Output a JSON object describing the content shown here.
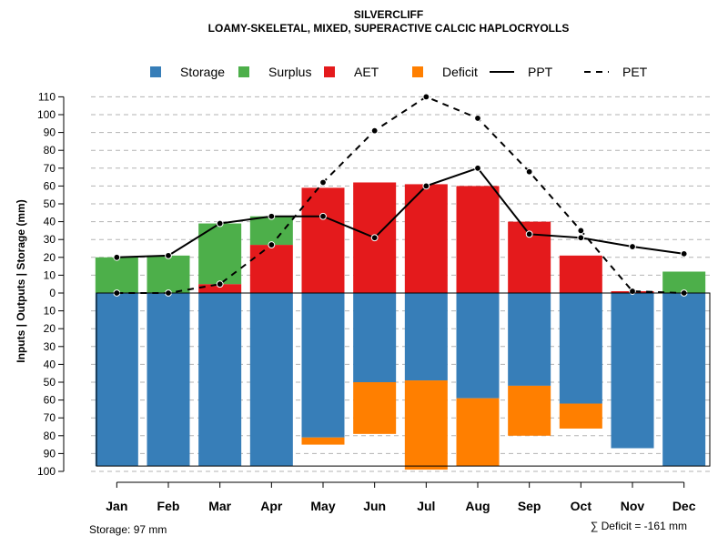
{
  "chart_data": {
    "type": "bar",
    "title": "SILVERCLIFF",
    "subtitle": "LOAMY-SKELETAL, MIXED, SUPERACTIVE CALCIC HAPLOCRYOLLS",
    "ylabel": "Inputs | Outputs | Storage    (mm)",
    "ylim": [
      -100,
      110
    ],
    "y_ticks": [
      110,
      100,
      90,
      80,
      70,
      60,
      50,
      40,
      30,
      20,
      10,
      0,
      -10,
      -20,
      -30,
      -40,
      -50,
      -60,
      -70,
      -80,
      -90,
      -100
    ],
    "y_tick_labels": [
      "110",
      "100",
      "90",
      "80",
      "70",
      "60",
      "50",
      "40",
      "30",
      "20",
      "10",
      "0",
      "10",
      "20",
      "30",
      "40",
      "50",
      "60",
      "70",
      "80",
      "90",
      "100"
    ],
    "categories": [
      "Jan",
      "Feb",
      "Mar",
      "Apr",
      "May",
      "Jun",
      "Jul",
      "Aug",
      "Sep",
      "Oct",
      "Nov",
      "Dec"
    ],
    "legend": [
      {
        "name": "Storage",
        "kind": "box",
        "color": "#377eb8"
      },
      {
        "name": "Surplus",
        "kind": "box",
        "color": "#4daf4a"
      },
      {
        "name": "AET",
        "kind": "box",
        "color": "#e41a1c"
      },
      {
        "name": "Deficit",
        "kind": "box",
        "color": "#ff7f00"
      },
      {
        "name": "PPT",
        "kind": "solid"
      },
      {
        "name": "PET",
        "kind": "dashed"
      }
    ],
    "series": [
      {
        "name": "Storage",
        "color": "#377eb8",
        "values": [
          97,
          97,
          97,
          97,
          81,
          50,
          49,
          59,
          52,
          62,
          87,
          97
        ]
      },
      {
        "name": "Deficit",
        "color": "#ff7f00",
        "values": [
          0,
          0,
          0,
          0,
          4,
          29,
          50,
          38,
          28,
          14,
          0,
          0
        ]
      },
      {
        "name": "AET",
        "color": "#e41a1c",
        "values": [
          0,
          0,
          5,
          27,
          59,
          62,
          61,
          60,
          40,
          21,
          1,
          0
        ]
      },
      {
        "name": "Surplus",
        "color": "#4daf4a",
        "values": [
          20,
          21,
          34,
          16,
          0,
          0,
          0,
          0,
          0,
          0,
          0,
          12
        ]
      },
      {
        "name": "PPT",
        "style": "solid",
        "color": "#000000",
        "values": [
          20,
          21,
          39,
          43,
          43,
          31,
          60,
          70,
          33,
          31,
          26,
          22
        ]
      },
      {
        "name": "PET",
        "style": "dashed",
        "color": "#000000",
        "values": [
          0,
          0,
          5,
          27,
          62,
          91,
          110,
          98,
          68,
          35,
          1,
          0
        ]
      }
    ],
    "storage_capacity": 97,
    "notes": {
      "storage": "Storage: 97 mm",
      "deficit": "∑ Deficit = -161 mm"
    },
    "grid": true
  }
}
